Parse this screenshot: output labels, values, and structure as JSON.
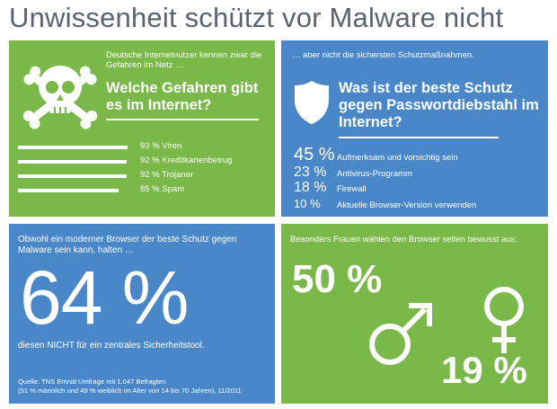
{
  "title": "Unwissenheit schützt vor Malware nicht",
  "panel1": {
    "intro": "Deutsche Internetnutzer kennen zwar die Gefahren im Netz …",
    "question": "Welche Gefahren gibt es im Internet?",
    "icon": "skull-crossbones-icon",
    "items": [
      {
        "label": "93 % Viren",
        "value": 93
      },
      {
        "label": "92 % Kreditkartenbetrug",
        "value": 92
      },
      {
        "label": "92 % Trojaner",
        "value": 92
      },
      {
        "label": "85 % Spam",
        "value": 85
      }
    ]
  },
  "panel2": {
    "intro": "… aber nicht die sichersten Schutzmaßnahmen.",
    "question": "Was ist der beste Schutz gegen Passwortdiebstahl im Internet?",
    "icon": "shield-icon",
    "items": [
      {
        "pct": "45 %",
        "label": "Aufmerksam und vorsichtig sein"
      },
      {
        "pct": "23 %",
        "label": "Antivirus-Programm"
      },
      {
        "pct": "18 %",
        "label": "Firewall"
      },
      {
        "pct": "10 %",
        "label": "Aktuelle Browser-Version verwenden"
      }
    ]
  },
  "panel3": {
    "intro": "Obwohl ein moderner Browser der beste Schutz gegen Malware sein kann, halten …",
    "big": "64 %",
    "statement": "diesen NICHT für ein zentrales Sicherheitstool.",
    "source_line1": "Quelle: TNS Emnid Umfrage mit 1.047 Befragten",
    "source_line2": "(51 % männlich und 49 % weiblich im Alter von 14 bis 70 Jahren), 11/2011"
  },
  "panel4": {
    "intro": "Besonders Frauen wählen den Browser selten bewusst aus:",
    "male_pct": "50 %",
    "female_pct": "19 %",
    "male_icon": "male-symbol-icon",
    "female_icon": "female-symbol-icon"
  },
  "colors": {
    "green": "#7bb84a",
    "blue": "#4a87c9",
    "title": "#5a6470"
  }
}
